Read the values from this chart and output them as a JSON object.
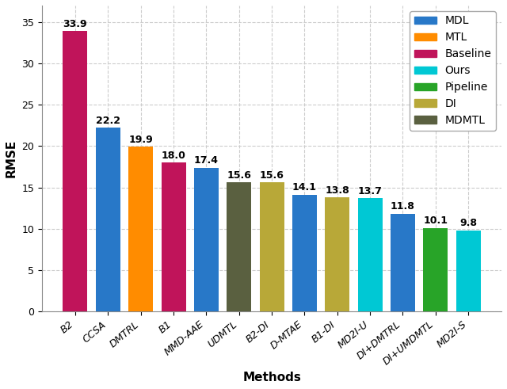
{
  "categories": [
    "B2",
    "CCSA",
    "DMTRL",
    "B1",
    "MMD-AAE",
    "UDMTL",
    "B2-DI",
    "D-MTAE",
    "B1-DI",
    "MD2I-U",
    "DI+DMTRL",
    "DI+UMDMTL",
    "MD2I-S"
  ],
  "values": [
    33.9,
    22.2,
    19.9,
    18.0,
    17.4,
    15.6,
    15.6,
    14.1,
    13.8,
    13.7,
    11.8,
    10.1,
    9.8
  ],
  "colors": [
    "#c0145a",
    "#2878c8",
    "#ff8c00",
    "#c0145a",
    "#2878c8",
    "#5a6040",
    "#b8a838",
    "#2878c8",
    "#b8a838",
    "#00c8d4",
    "#2878c8",
    "#28a428",
    "#00c8d4"
  ],
  "legend_labels": [
    "MDL",
    "MTL",
    "Baseline",
    "Ours",
    "Pipeline",
    "DI",
    "MDMTL"
  ],
  "legend_colors": [
    "#2878c8",
    "#ff8c00",
    "#c0145a",
    "#00c8d4",
    "#28a428",
    "#b8a838",
    "#5a6040"
  ],
  "xlabel": "Methods",
  "ylabel": "RMSE",
  "ylim": [
    0,
    37
  ],
  "yticks": [
    0,
    5,
    10,
    15,
    20,
    25,
    30,
    35
  ],
  "figsize": [
    6.4,
    4.91
  ],
  "dpi": 100,
  "background_color": "#ffffff",
  "grid_color": "#cccccc",
  "label_fontsize": 9,
  "axis_label_fontsize": 11,
  "tick_fontsize": 9,
  "legend_fontsize": 10,
  "bar_width": 0.75
}
